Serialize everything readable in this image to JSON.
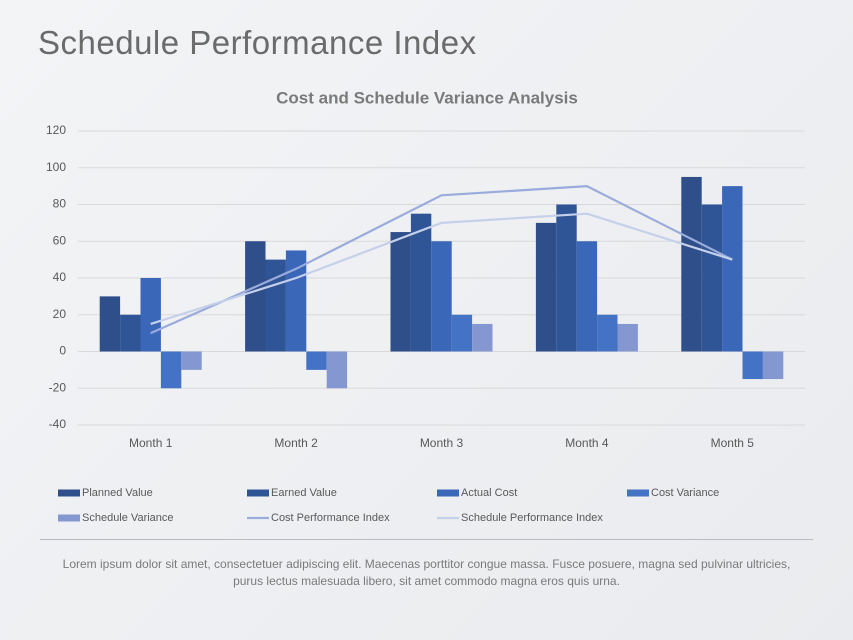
{
  "header": {
    "title": "Schedule Performance Index"
  },
  "chart_data": {
    "type": "bar",
    "title": "Cost and Schedule Variance Analysis",
    "categories": [
      "Month 1",
      "Month 2",
      "Month 3",
      "Month 4",
      "Month 5"
    ],
    "series": [
      {
        "name": "Planned Value",
        "type": "bar",
        "color": "#2e4f8a",
        "values": [
          30,
          60,
          65,
          70,
          95
        ]
      },
      {
        "name": "Earned Value",
        "type": "bar",
        "color": "#2f5597",
        "values": [
          20,
          50,
          75,
          80,
          80
        ]
      },
      {
        "name": "Actual Cost",
        "type": "bar",
        "color": "#3a67b8",
        "values": [
          40,
          55,
          60,
          60,
          90
        ]
      },
      {
        "name": "Cost Variance",
        "type": "bar",
        "color": "#4472c4",
        "values": [
          -20,
          -10,
          20,
          20,
          -15
        ]
      },
      {
        "name": "Schedule Variance",
        "type": "bar",
        "color": "#8497d0",
        "values": [
          -10,
          -20,
          15,
          15,
          -15
        ]
      },
      {
        "name": "Cost Performance Index",
        "type": "line",
        "color": "#9aabdc",
        "values": [
          10,
          45,
          85,
          90,
          50
        ]
      },
      {
        "name": "Schedule Performance Index",
        "type": "line",
        "color": "#c5d0ea",
        "values": [
          15,
          40,
          70,
          75,
          50
        ]
      }
    ],
    "ylim": [
      -40,
      120
    ],
    "yticks": [
      -40,
      -20,
      0,
      20,
      40,
      60,
      80,
      100,
      120
    ],
    "grid": true,
    "legend": "bottom"
  },
  "footer": {
    "text": "Lorem ipsum dolor sit amet, consectetuer adipiscing elit. Maecenas porttitor congue massa. Fusce posuere, magna sed pulvinar ultricies, purus lectus malesuada libero, sit amet commodo magna eros quis urna."
  }
}
